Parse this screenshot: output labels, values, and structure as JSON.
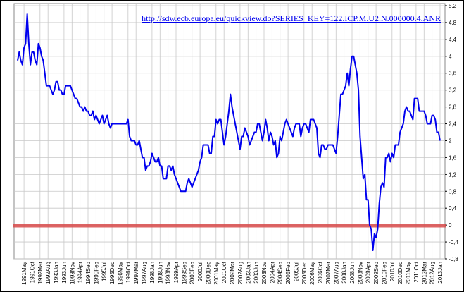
{
  "chart_data": {
    "type": "line",
    "annotation": "http://sdw.ecb.europa.eu/quickview.do?SERIES_KEY=122.ICP.M.U2.N.000000.4.ANR",
    "categories": [
      null,
      null,
      null,
      null,
      "1991May",
      null,
      null,
      null,
      null,
      "1991Oct",
      null,
      null,
      null,
      null,
      "1992Mar",
      null,
      null,
      null,
      null,
      "1992Aug",
      null,
      null,
      null,
      null,
      "1993Jan",
      null,
      null,
      null,
      null,
      "1993Jun",
      null,
      null,
      null,
      null,
      "1993Nov",
      null,
      null,
      null,
      null,
      "1994Apr",
      null,
      null,
      null,
      null,
      "1994Sep",
      null,
      null,
      null,
      null,
      "1995Feb",
      null,
      null,
      null,
      null,
      "1995Jul",
      null,
      null,
      null,
      null,
      "1995Dec",
      null,
      null,
      null,
      null,
      "1996May",
      null,
      null,
      null,
      null,
      "1996Oct",
      null,
      null,
      null,
      null,
      "1997Mar",
      null,
      null,
      null,
      null,
      "1997Aug",
      null,
      null,
      null,
      null,
      "1998Jan",
      null,
      null,
      null,
      null,
      "1998Jun",
      null,
      null,
      null,
      null,
      "1998Nov",
      null,
      null,
      null,
      null,
      "1999Apr",
      null,
      null,
      null,
      null,
      "1999Sep",
      null,
      null,
      null,
      null,
      "2000Feb",
      null,
      null,
      null,
      null,
      "2000Jul",
      null,
      null,
      null,
      null,
      "2000Dec",
      null,
      null,
      null,
      null,
      "2001May",
      null,
      null,
      null,
      null,
      "2001Oct",
      null,
      null,
      null,
      null,
      "2002Mar",
      null,
      null,
      null,
      null,
      "2002Aug",
      null,
      null,
      null,
      null,
      "2003Jan",
      null,
      null,
      null,
      null,
      "2003Jun",
      null,
      null,
      null,
      null,
      "2003Nov",
      null,
      null,
      null,
      null,
      "2004Apr",
      null,
      null,
      null,
      null,
      "2004Sep",
      null,
      null,
      null,
      null,
      "2005Feb",
      null,
      null,
      null,
      null,
      "2005Jul",
      null,
      null,
      null,
      null,
      "2005Dec",
      null,
      null,
      null,
      null,
      "2006May",
      null,
      null,
      null,
      null,
      "2006Oct",
      null,
      null,
      null,
      null,
      "2007Mar",
      null,
      null,
      null,
      null,
      "2007Aug",
      null,
      null,
      null,
      null,
      "2008Jan",
      null,
      null,
      null,
      null,
      "2008Jun",
      null,
      null,
      null,
      null,
      "2008Nov",
      null,
      null,
      null,
      null,
      "2009Apr",
      null,
      null,
      null,
      null,
      "2009Sep",
      null,
      null,
      null,
      null,
      "2010Feb",
      null,
      null,
      null,
      null,
      "2010Jul",
      null,
      null,
      null,
      null,
      "2010Dec",
      null,
      null,
      null,
      null,
      "2011May",
      null,
      null,
      null,
      null,
      "2011Oct",
      null,
      null,
      null,
      null,
      "2012Mar",
      null,
      null,
      null,
      null,
      "2012Aug",
      null,
      null,
      null,
      null,
      "2013Jan"
    ],
    "series": [
      {
        "color": "#0000ee",
        "values": [
          3.9,
          4.1,
          3.9,
          3.8,
          4.2,
          4.3,
          5.0,
          4.3,
          3.8,
          4.1,
          4.1,
          3.9,
          3.8,
          4.3,
          4.2,
          4.0,
          3.9,
          3.6,
          3.3,
          3.3,
          3.3,
          3.2,
          3.1,
          3.2,
          3.4,
          3.4,
          3.2,
          3.2,
          3.1,
          3.1,
          3.3,
          3.3,
          3.3,
          3.3,
          3.2,
          3.1,
          3.0,
          3.0,
          2.9,
          2.8,
          2.8,
          2.7,
          2.8,
          2.7,
          2.7,
          2.6,
          2.6,
          2.7,
          2.5,
          2.6,
          2.5,
          2.4,
          2.5,
          2.6,
          2.4,
          2.5,
          2.6,
          2.4,
          2.3,
          2.4,
          2.4,
          2.4,
          2.4,
          2.4,
          2.4,
          2.4,
          2.4,
          2.4,
          2.4,
          2.5,
          2.1,
          2.0,
          2.0,
          2.0,
          1.9,
          1.9,
          2.0,
          1.8,
          1.6,
          1.6,
          1.3,
          1.4,
          1.4,
          1.5,
          1.7,
          1.6,
          1.5,
          1.5,
          1.6,
          1.4,
          1.4,
          1.1,
          1.1,
          1.1,
          1.4,
          1.4,
          1.3,
          1.4,
          1.2,
          1.1,
          1.0,
          0.9,
          0.8,
          0.8,
          0.8,
          0.8,
          1.0,
          1.1,
          1.0,
          0.9,
          1.0,
          1.1,
          1.2,
          1.3,
          1.5,
          1.6,
          1.9,
          1.9,
          1.9,
          1.9,
          1.7,
          1.7,
          2.1,
          2.1,
          2.5,
          2.4,
          2.5,
          2.5,
          2.2,
          1.9,
          2.1,
          2.4,
          2.7,
          3.1,
          2.8,
          2.6,
          2.4,
          2.2,
          2.0,
          1.8,
          2.1,
          2.1,
          2.3,
          2.2,
          2.1,
          1.9,
          2.0,
          2.1,
          2.2,
          2.2,
          2.4,
          2.4,
          2.2,
          2.0,
          2.2,
          2.5,
          2.3,
          2.0,
          2.2,
          2.1,
          1.9,
          2.0,
          1.6,
          1.7,
          2.1,
          2.0,
          2.2,
          2.4,
          2.5,
          2.4,
          2.3,
          2.2,
          2.1,
          2.3,
          2.4,
          2.4,
          2.4,
          2.1,
          2.3,
          2.4,
          2.4,
          2.3,
          2.2,
          2.5,
          2.5,
          2.5,
          2.4,
          2.3,
          1.7,
          1.6,
          1.9,
          1.9,
          1.8,
          1.8,
          1.9,
          1.9,
          1.9,
          1.9,
          1.8,
          1.7,
          2.1,
          2.6,
          3.1,
          3.1,
          3.2,
          3.3,
          3.6,
          3.3,
          3.7,
          4.0,
          4.0,
          3.8,
          3.6,
          3.2,
          2.1,
          1.6,
          1.1,
          1.2,
          0.6,
          0.6,
          0.0,
          -0.1,
          -0.6,
          -0.2,
          -0.3,
          -0.1,
          0.5,
          0.9,
          1.0,
          0.9,
          1.6,
          1.6,
          1.7,
          1.5,
          1.7,
          1.6,
          1.9,
          1.9,
          1.9,
          2.2,
          2.3,
          2.4,
          2.7,
          2.8,
          2.7,
          2.7,
          2.6,
          2.5,
          3.0,
          3.0,
          3.0,
          2.7,
          2.7,
          2.7,
          2.7,
          2.6,
          2.4,
          2.4,
          2.4,
          2.6,
          2.6,
          2.5,
          2.2,
          2.2,
          2.0
        ]
      }
    ],
    "ylim": [
      -0.8,
      5.2
    ],
    "yticks": [
      {
        "value": -0.8,
        "label": "-0,8"
      },
      {
        "value": -0.4,
        "label": "-0,4"
      },
      0,
      {
        "value": 0.4,
        "label": "0,4"
      },
      {
        "value": 0.8,
        "label": "0,8"
      },
      {
        "value": 1.2,
        "label": "1,2"
      },
      {
        "value": 1.6,
        "label": "1,6"
      },
      2,
      {
        "value": 2.4,
        "label": "2,4"
      },
      {
        "value": 2.8,
        "label": "2,8"
      },
      {
        "value": 3.2,
        "label": "3,2"
      },
      {
        "value": 3.6,
        "label": "3,6"
      },
      4,
      {
        "value": 4.4,
        "label": "4,4"
      },
      {
        "value": 4.8,
        "label": "4,8"
      },
      {
        "value": 5.2,
        "label": "5,2"
      }
    ],
    "grid": true,
    "y_axis_side": "right"
  }
}
